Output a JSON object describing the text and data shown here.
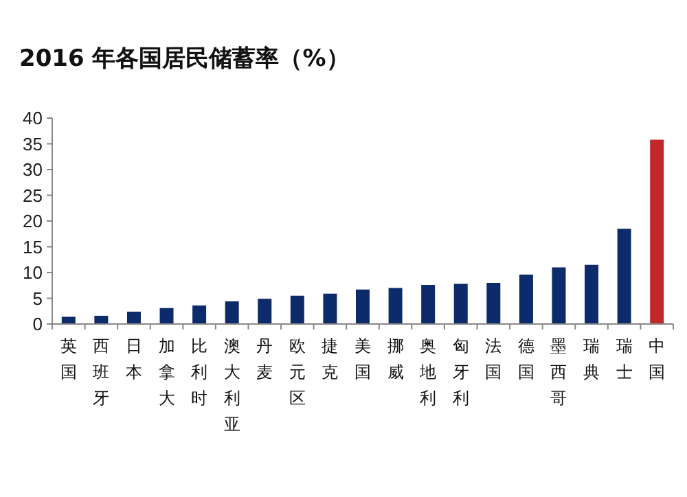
{
  "chart_data": {
    "type": "bar",
    "title": "2016 年各国居民储蓄率（%）",
    "categories": [
      "英国",
      "西班牙",
      "日本",
      "加拿大",
      "比利时",
      "澳大利亚",
      "丹麦",
      "欧元区",
      "捷克",
      "美国",
      "挪威",
      "奥地利",
      "匈牙利",
      "法国",
      "德国",
      "墨西哥",
      "瑞典",
      "瑞士",
      "中国"
    ],
    "values": [
      1.4,
      1.6,
      2.4,
      3.1,
      3.6,
      4.4,
      4.9,
      5.5,
      5.9,
      6.7,
      7,
      7.6,
      7.8,
      8,
      9.6,
      11,
      11.5,
      18.5,
      35.8
    ],
    "colors": [
      "#0d2a6b",
      "#0d2a6b",
      "#0d2a6b",
      "#0d2a6b",
      "#0d2a6b",
      "#0d2a6b",
      "#0d2a6b",
      "#0d2a6b",
      "#0d2a6b",
      "#0d2a6b",
      "#0d2a6b",
      "#0d2a6b",
      "#0d2a6b",
      "#0d2a6b",
      "#0d2a6b",
      "#0d2a6b",
      "#0d2a6b",
      "#0d2a6b",
      "#c0282a"
    ],
    "ylim": [
      0,
      40
    ],
    "yticks": [
      0,
      5,
      10,
      15,
      20,
      25,
      30,
      35,
      40
    ],
    "grid": false
  }
}
